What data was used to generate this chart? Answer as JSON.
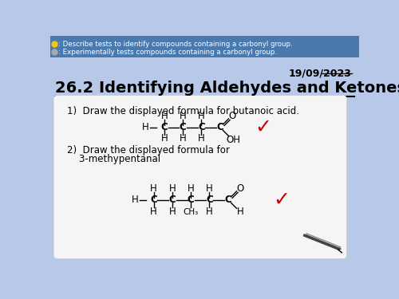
{
  "bg_top_color": "#4a7aad",
  "bg_bottom_color": "#b8c8e8",
  "date": "19/09/2023",
  "title": "26.2 Identifying Aldehydes and Ketones",
  "bullet1_icon_color": "#f5c518",
  "bullet2_icon_color": "#aaaaaa",
  "bullet1_text": ": Describe tests to identify compounds containing a carbonyl group.",
  "bullet2_text": ": Experimentally tests compounds containing a carbonyl group.",
  "q1_text": "1)  Draw the displayed formula for butanoic acid.",
  "q2_line1": "2)  Draw the displayed formula for",
  "q2_line2": "    3-methypentanal",
  "card_bg": "#f5f5f5",
  "check_color": "#cc0000"
}
